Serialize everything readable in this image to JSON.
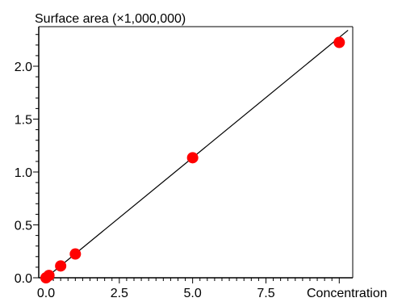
{
  "chart_data": {
    "type": "scatter",
    "ylabel": "Surface area (×1,000,000)",
    "xlabel": "Concentration",
    "x_ticks": [
      {
        "value": 0,
        "label": "0.0"
      },
      {
        "value": 2.5,
        "label": "2.5"
      },
      {
        "value": 5,
        "label": "5.0"
      },
      {
        "value": 7.5,
        "label": "7.5"
      }
    ],
    "y_ticks": [
      {
        "value": 0,
        "label": "0.0"
      },
      {
        "value": 0.5,
        "label": "0.5"
      },
      {
        "value": 1,
        "label": "1.0"
      },
      {
        "value": 1.5,
        "label": "1.5"
      },
      {
        "value": 2,
        "label": "2.0"
      }
    ],
    "xlim": [
      0,
      10.3
    ],
    "ylim": [
      0,
      2.35
    ],
    "points": [
      {
        "x": 0,
        "y": 0.0
      },
      {
        "x": 0.1,
        "y": 0.022
      },
      {
        "x": 0.5,
        "y": 0.112
      },
      {
        "x": 1.0,
        "y": 0.225
      },
      {
        "x": 5.0,
        "y": 1.135
      },
      {
        "x": 10.0,
        "y": 2.225
      }
    ],
    "fit_line": {
      "x": [
        0,
        10.3
      ],
      "y": [
        0,
        2.34
      ]
    },
    "colors": {
      "point": "#ff0000",
      "line": "#000000",
      "axis": "#000000"
    },
    "grid": false,
    "legend": "none"
  }
}
